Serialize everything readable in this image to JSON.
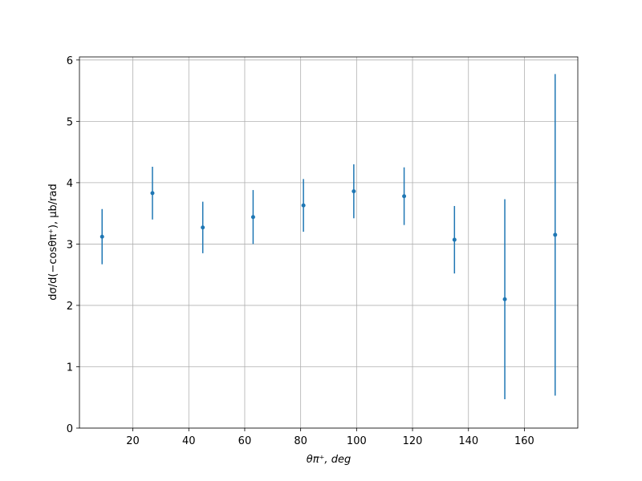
{
  "chart_data": {
    "type": "errorbar",
    "xlabel": "θπ⁺, deg",
    "ylabel": "dσ/d(−cosθπ⁺), μb/rad",
    "x": [
      9,
      27,
      45,
      63,
      81,
      99,
      117,
      135,
      153,
      171
    ],
    "series": [
      {
        "color": "#1f77b4",
        "values": [
          3.12,
          3.83,
          3.27,
          3.44,
          3.63,
          3.86,
          3.78,
          3.07,
          2.1,
          3.15
        ],
        "errors": [
          0.45,
          0.43,
          0.42,
          0.44,
          0.43,
          0.44,
          0.47,
          0.55,
          1.63,
          2.62
        ]
      }
    ],
    "xlim": [
      0.9,
      179.1
    ],
    "xticks": [
      20,
      40,
      60,
      80,
      100,
      120,
      140,
      160
    ],
    "ylim": [
      0,
      6.05
    ],
    "yticks": [
      0,
      1,
      2,
      3,
      4,
      5,
      6
    ],
    "grid": true
  }
}
